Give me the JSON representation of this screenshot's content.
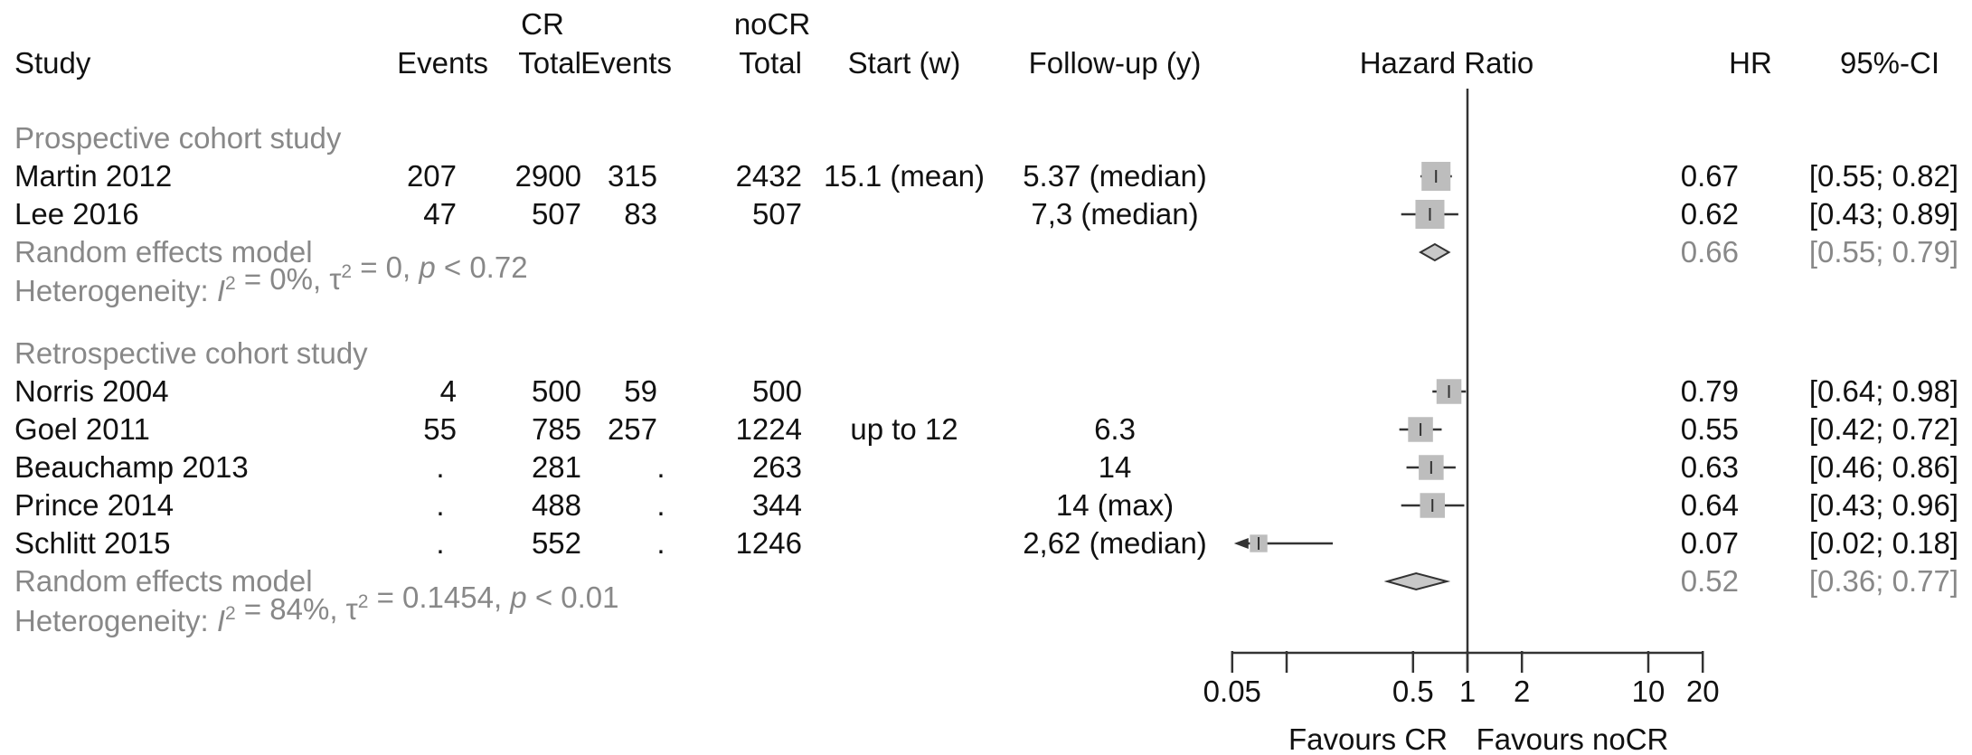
{
  "chart_data": {
    "type": "forest",
    "headers": {
      "cr_group": "CR",
      "nocr_group": "noCR",
      "study": "Study",
      "events": "Events",
      "total": "Total",
      "start": "Start (w)",
      "followup": "Follow-up (y)",
      "hazard_ratio": "Hazard Ratio",
      "hr": "HR",
      "ci": "95%-CI"
    },
    "groups": [
      {
        "name": "Prospective cohort study",
        "studies": [
          {
            "study": "Martin 2012",
            "cr_events": "207",
            "cr_total": "2900",
            "nocr_events": "315",
            "nocr_total": "2432",
            "start": "15.1 (mean)",
            "followup": "5.37 (median)",
            "hr": 0.67,
            "lower": 0.55,
            "upper": 0.82,
            "hr_text": "0.67",
            "ci_text": "[0.55; 0.82]",
            "weight": 1.0
          },
          {
            "study": "Lee 2016",
            "cr_events": "47",
            "cr_total": "507",
            "nocr_events": "83",
            "nocr_total": "507",
            "start": "",
            "followup": "7,3 (median)",
            "hr": 0.62,
            "lower": 0.43,
            "upper": 0.89,
            "hr_text": "0.62",
            "ci_text": "[0.43; 0.89]",
            "weight": 1.0
          }
        ],
        "pooled": {
          "label": "Random effects model",
          "hr": 0.66,
          "lower": 0.55,
          "upper": 0.79,
          "hr_text": "0.66",
          "ci_text": "[0.55; 0.79]"
        },
        "heterogeneity": {
          "prefix": "Heterogeneity: ",
          "i2_symbol": "I",
          "i2_value": " = 0%, ",
          "tau2_symbol": "τ",
          "tau2_value": " = 0, ",
          "p_symbol": "p",
          "p_value": " < 0.72"
        }
      },
      {
        "name": "Retrospective cohort study",
        "studies": [
          {
            "study": "Norris 2004",
            "cr_events": "4",
            "cr_total": "500",
            "nocr_events": "59",
            "nocr_total": "500",
            "start": "",
            "followup": "",
            "hr": 0.79,
            "lower": 0.64,
            "upper": 0.98,
            "hr_text": "0.79",
            "ci_text": "[0.64; 0.98]",
            "weight": 0.75
          },
          {
            "study": "Goel 2011",
            "cr_events": "55",
            "cr_total": "785",
            "nocr_events": "257",
            "nocr_total": "1224",
            "start": "up to 12",
            "followup": "6.3",
            "hr": 0.55,
            "lower": 0.42,
            "upper": 0.72,
            "hr_text": "0.55",
            "ci_text": "[0.42; 0.72]",
            "weight": 0.75
          },
          {
            "study": "Beauchamp 2013",
            "cr_events": ".",
            "cr_total": "281",
            "nocr_events": ".",
            "nocr_total": "263",
            "start": "",
            "followup": "14",
            "hr": 0.63,
            "lower": 0.46,
            "upper": 0.86,
            "hr_text": "0.63",
            "ci_text": "[0.46; 0.86]",
            "weight": 0.75
          },
          {
            "study": "Prince 2014",
            "cr_events": ".",
            "cr_total": "488",
            "nocr_events": ".",
            "nocr_total": "344",
            "start": "",
            "followup": "14 (max)",
            "hr": 0.64,
            "lower": 0.43,
            "upper": 0.96,
            "hr_text": "0.64",
            "ci_text": "[0.43; 0.96]",
            "weight": 0.75
          },
          {
            "study": "Schlitt 2015",
            "cr_events": ".",
            "cr_total": "552",
            "nocr_events": ".",
            "nocr_total": "1246",
            "start": "",
            "followup": "2,62 (median)",
            "hr": 0.07,
            "lower": 0.02,
            "upper": 0.18,
            "hr_text": "0.07",
            "ci_text": "[0.02; 0.18]",
            "weight": 0.3
          }
        ],
        "pooled": {
          "label": "Random effects model",
          "hr": 0.52,
          "lower": 0.36,
          "upper": 0.77,
          "hr_text": "0.52",
          "ci_text": "[0.36; 0.77]"
        },
        "heterogeneity": {
          "prefix": "Heterogeneity: ",
          "i2_symbol": "I",
          "i2_value": " = 84%, ",
          "tau2_symbol": "τ",
          "tau2_value": " = 0.1454, ",
          "p_symbol": "p",
          "p_value": " < 0.01"
        }
      }
    ],
    "x_scale": "log",
    "x_range": [
      0.05,
      20
    ],
    "x_ticks": [
      0.05,
      0.1,
      0.5,
      1,
      2,
      10,
      20
    ],
    "x_tick_labels": [
      {
        "value": 0.05,
        "label": "0.05"
      },
      {
        "value": 0.5,
        "label": "0.5"
      },
      {
        "value": 1,
        "label": "1"
      },
      {
        "value": 2,
        "label": "2"
      },
      {
        "value": 10,
        "label": "10"
      },
      {
        "value": 20,
        "label": "20"
      }
    ],
    "reference_line": 1,
    "favours_left": "Favours CR",
    "favours_right": "Favours noCR",
    "colors": {
      "text": "#111111",
      "secondary_text": "#888888",
      "square": "#bdbdbd",
      "diamond": "#c8c8c8",
      "line": "#333333"
    }
  }
}
